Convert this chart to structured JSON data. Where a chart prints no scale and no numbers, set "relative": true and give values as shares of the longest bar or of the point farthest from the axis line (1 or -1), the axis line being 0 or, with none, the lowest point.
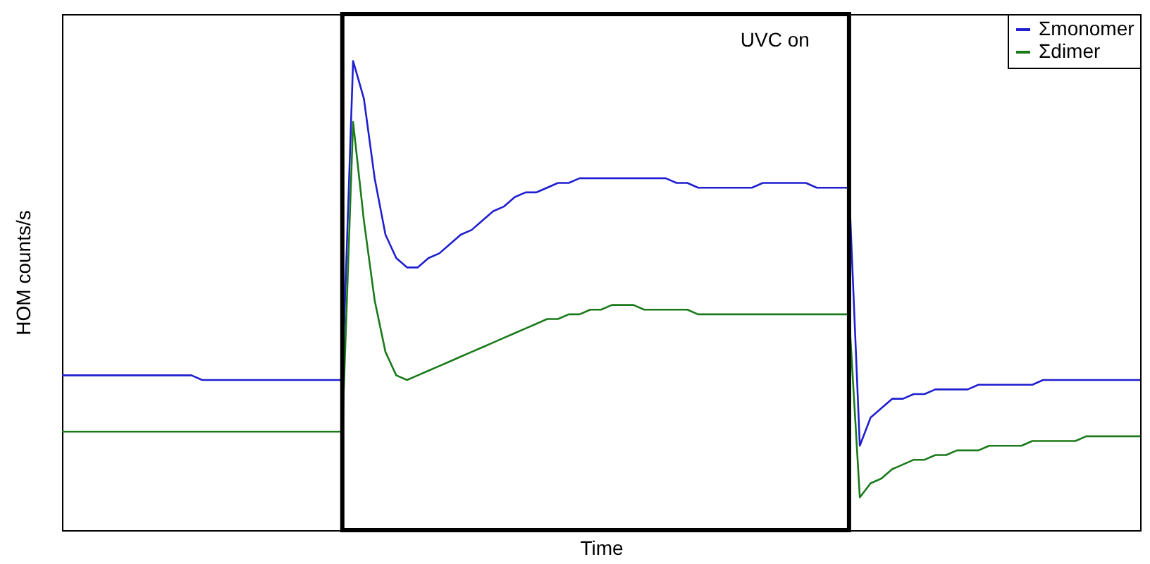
{
  "chart_data": {
    "type": "line",
    "relative": true,
    "xlabel": "Time",
    "ylabel": "HOM counts/s",
    "legend": "top right",
    "annotations": [
      "UVC on"
    ],
    "categories": [
      null,
      null,
      null,
      null,
      null,
      null,
      null,
      null,
      null,
      null,
      null,
      null,
      null,
      null,
      null,
      null,
      null,
      null,
      null,
      null,
      null,
      null,
      null,
      null,
      null,
      null,
      null,
      null,
      null,
      null,
      null,
      null,
      null,
      null,
      null,
      null,
      null,
      null,
      null,
      null,
      null,
      null,
      null,
      null,
      null,
      null,
      null,
      null,
      null,
      null,
      null,
      null,
      null,
      null,
      null,
      null,
      null,
      null,
      null,
      null,
      null,
      null,
      null,
      null,
      null,
      null,
      null,
      null,
      null,
      null,
      null,
      null,
      null,
      null,
      null,
      null,
      null,
      null,
      null,
      null,
      null,
      null,
      null,
      null,
      null,
      null,
      null,
      null,
      null,
      null,
      null,
      null,
      null,
      null,
      null,
      null,
      null,
      null,
      null,
      null,
      null
    ],
    "series": [
      {
        "name": "Σmonomer",
        "color": "#1f1fd0",
        "values": [
          0.33,
          0.33,
          0.33,
          0.33,
          0.33,
          0.33,
          0.33,
          0.33,
          0.33,
          0.33,
          0.33,
          0.33,
          0.33,
          0.32,
          0.32,
          0.32,
          0.32,
          0.32,
          0.32,
          0.32,
          0.32,
          0.32,
          0.32,
          0.32,
          0.32,
          0.32,
          0.32,
          1,
          0.92,
          0.75,
          0.63,
          0.58,
          0.56,
          0.56,
          0.58,
          0.59,
          0.61,
          0.63,
          0.64,
          0.66,
          0.68,
          0.69,
          0.71,
          0.72,
          0.72,
          0.73,
          0.74,
          0.74,
          0.75,
          0.75,
          0.75,
          0.75,
          0.75,
          0.75,
          0.75,
          0.75,
          0.75,
          0.74,
          0.74,
          0.73,
          0.73,
          0.73,
          0.73,
          0.73,
          0.73,
          0.74,
          0.74,
          0.74,
          0.74,
          0.74,
          0.73,
          0.73,
          0.73,
          0.73,
          0.18,
          0.24,
          0.26,
          0.28,
          0.28,
          0.29,
          0.29,
          0.3,
          0.3,
          0.3,
          0.3,
          0.31,
          0.31,
          0.31,
          0.31,
          0.31,
          0.31,
          0.32,
          0.32,
          0.32,
          0.32,
          0.32,
          0.32,
          0.32,
          0.32,
          0.32,
          0.32
        ]
      },
      {
        "name": "Σdimer",
        "color": "#1a7a1a",
        "values": [
          0.21,
          0.21,
          0.21,
          0.21,
          0.21,
          0.21,
          0.21,
          0.21,
          0.21,
          0.21,
          0.21,
          0.21,
          0.21,
          0.21,
          0.21,
          0.21,
          0.21,
          0.21,
          0.21,
          0.21,
          0.21,
          0.21,
          0.21,
          0.21,
          0.21,
          0.21,
          0.21,
          0.87,
          0.66,
          0.49,
          0.38,
          0.33,
          0.32,
          0.33,
          0.34,
          0.35,
          0.36,
          0.37,
          0.38,
          0.39,
          0.4,
          0.41,
          0.42,
          0.43,
          0.44,
          0.45,
          0.45,
          0.46,
          0.46,
          0.47,
          0.47,
          0.48,
          0.48,
          0.48,
          0.47,
          0.47,
          0.47,
          0.47,
          0.47,
          0.46,
          0.46,
          0.46,
          0.46,
          0.46,
          0.46,
          0.46,
          0.46,
          0.46,
          0.46,
          0.46,
          0.46,
          0.46,
          0.46,
          0.46,
          0.07,
          0.1,
          0.11,
          0.13,
          0.14,
          0.15,
          0.15,
          0.16,
          0.16,
          0.17,
          0.17,
          0.17,
          0.18,
          0.18,
          0.18,
          0.18,
          0.19,
          0.19,
          0.19,
          0.19,
          0.19,
          0.2,
          0.2,
          0.2,
          0.2,
          0.2,
          0.2
        ]
      }
    ]
  }
}
